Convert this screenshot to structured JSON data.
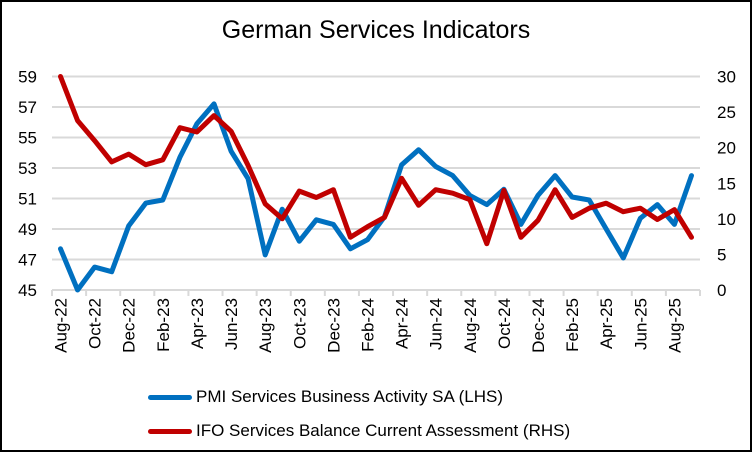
{
  "chart_data": {
    "type": "line",
    "title": "German Services Indicators",
    "xlabel": "",
    "ylabel_left": "",
    "ylabel_right": "",
    "grid": true,
    "legend_position": "bottom",
    "x": [
      "Aug-22",
      "Sep-22",
      "Oct-22",
      "Nov-22",
      "Dec-22",
      "Jan-23",
      "Feb-23",
      "Mar-23",
      "Apr-23",
      "May-23",
      "Jun-23",
      "Jul-23",
      "Aug-23",
      "Sep-23",
      "Oct-23",
      "Nov-23",
      "Dec-23",
      "Jan-24",
      "Feb-24",
      "Mar-24",
      "Apr-24",
      "May-24",
      "Jun-24",
      "Jul-24",
      "Aug-24",
      "Sep-24",
      "Oct-24",
      "Nov-24",
      "Dec-24",
      "Jan-25",
      "Feb-25",
      "Mar-25",
      "Apr-25",
      "May-25",
      "Jun-25",
      "Jul-25",
      "Aug-25",
      "Sep-25"
    ],
    "x_tick_labels": [
      "Aug-22",
      "Oct-22",
      "Dec-22",
      "Feb-23",
      "Apr-23",
      "Jun-23",
      "Aug-23",
      "Oct-23",
      "Dec-23",
      "Feb-24",
      "Apr-24",
      "Jun-24",
      "Aug-24",
      "Oct-24",
      "Dec-24",
      "Feb-25",
      "Apr-25",
      "Jun-25",
      "Aug-25"
    ],
    "y_left": {
      "range": [
        45,
        59
      ],
      "ticks": [
        45,
        47,
        49,
        51,
        53,
        55,
        57,
        59
      ]
    },
    "y_right": {
      "range": [
        0,
        30
      ],
      "ticks": [
        0,
        5,
        10,
        15,
        20,
        25,
        30
      ]
    },
    "series": [
      {
        "name": "PMI Services Business Activity SA (LHS)",
        "axis": "left",
        "color": "#0070C0",
        "values": [
          47.7,
          45.0,
          46.5,
          46.2,
          49.2,
          50.7,
          50.9,
          53.7,
          55.9,
          57.2,
          54.1,
          52.3,
          47.3,
          50.3,
          48.2,
          49.6,
          49.3,
          47.7,
          48.3,
          49.8,
          53.2,
          54.2,
          53.1,
          52.5,
          51.2,
          50.6,
          51.6,
          49.3,
          51.2,
          52.5,
          51.1,
          50.9,
          49.0,
          47.1,
          49.7,
          50.6,
          49.3,
          52.5
        ]
      },
      {
        "name": "IFO Services Balance Current Assessment (RHS)",
        "axis": "right",
        "color": "#C00000",
        "values": [
          30.0,
          23.8,
          21.0,
          18.0,
          19.1,
          17.6,
          18.3,
          22.8,
          22.2,
          24.5,
          22.3,
          17.5,
          12.1,
          10.0,
          13.9,
          13.0,
          14.1,
          7.4,
          8.9,
          10.2,
          15.7,
          11.9,
          14.1,
          13.6,
          12.7,
          6.5,
          14.0,
          7.4,
          9.8,
          14.1,
          10.2,
          11.5,
          12.2,
          11.0,
          11.5,
          9.9,
          11.3,
          7.4
        ]
      }
    ]
  }
}
